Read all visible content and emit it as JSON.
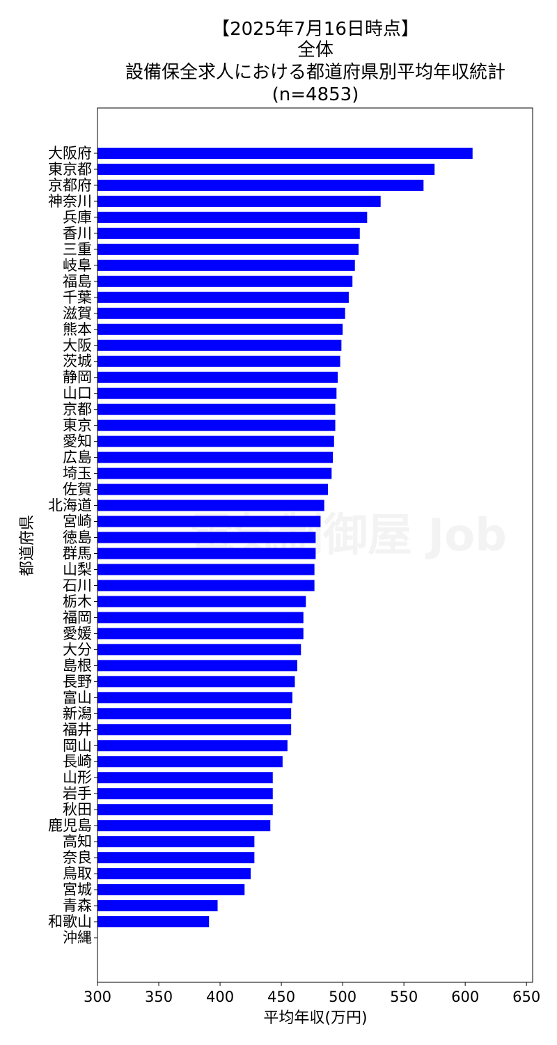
{
  "chart_data": {
    "type": "bar",
    "orientation": "horizontal",
    "title_lines": [
      "【2025年7月16日時点】",
      "全体",
      "設備保全求人における都道府県別平均年収統計",
      "(n=4853)"
    ],
    "xlabel": "平均年収(万円)",
    "ylabel": "都道府県",
    "xlim": [
      300,
      655
    ],
    "xticks": [
      300,
      350,
      400,
      450,
      500,
      550,
      600,
      650
    ],
    "grid": false,
    "bar_color": "#0000ff",
    "categories": [
      "大阪府",
      "東京都",
      "京都府",
      "神奈川",
      "兵庫",
      "香川",
      "三重",
      "岐阜",
      "福島",
      "千葉",
      "滋賀",
      "熊本",
      "大阪",
      "茨城",
      "静岡",
      "山口",
      "京都",
      "東京",
      "愛知",
      "広島",
      "埼玉",
      "佐賀",
      "北海道",
      "宮崎",
      "徳島",
      "群馬",
      "山梨",
      "石川",
      "栃木",
      "福岡",
      "愛媛",
      "大分",
      "島根",
      "長野",
      "富山",
      "新潟",
      "福井",
      "岡山",
      "長崎",
      "山形",
      "岩手",
      "秋田",
      "鹿児島",
      "高知",
      "奈良",
      "鳥取",
      "宮城",
      "青森",
      "和歌山",
      "沖縄"
    ],
    "values": [
      606,
      575,
      566,
      531,
      520,
      514,
      513,
      510,
      508,
      505,
      502,
      500,
      499,
      498,
      496,
      495,
      494,
      494,
      493,
      492,
      491,
      488,
      485,
      482,
      478,
      478,
      477,
      477,
      470,
      468,
      468,
      466,
      463,
      461,
      459,
      458,
      458,
      455,
      451,
      443,
      443,
      443,
      441,
      428,
      428,
      425,
      420,
      398,
      391,
      null
    ],
    "watermark": "電気制御屋 Job"
  }
}
